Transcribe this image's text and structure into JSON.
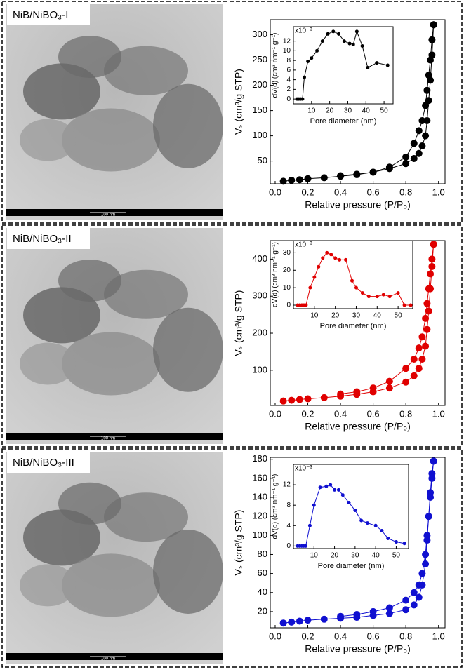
{
  "panels": [
    {
      "label": "NiB/NiBO₃-I",
      "scale_bar": "100 nm"
    },
    {
      "label": "NiB/NiBO₃-II",
      "scale_bar": "100 nm"
    },
    {
      "label": "NiB/NiBO₃-III",
      "scale_bar": "100 nm"
    }
  ],
  "chart_data": [
    {
      "type": "line",
      "x_label": "Relative pressure (P/P₀)",
      "y_label": "Vₛ (cm³/g STP)",
      "xlim": [
        -0.03,
        1.04
      ],
      "ylim": [
        5,
        330
      ],
      "xticks": [
        {
          "value": 0,
          "label": "0.0"
        },
        {
          "value": 0.2,
          "label": "0.2"
        },
        {
          "value": 0.4,
          "label": "0.4"
        },
        {
          "value": 0.6,
          "label": "0.6"
        },
        {
          "value": 0.8,
          "label": "0.8"
        },
        {
          "value": 1,
          "label": "1.0"
        }
      ],
      "yticks": [
        50,
        100,
        150,
        200,
        250,
        300
      ],
      "series": [
        {
          "color": "#000000",
          "x": [
            0.05,
            0.1,
            0.15,
            0.2,
            0.3,
            0.4,
            0.5,
            0.6,
            0.7,
            0.8,
            0.85,
            0.88,
            0.9,
            0.92,
            0.93,
            0.94,
            0.95,
            0.96,
            0.97
          ],
          "values": [
            10,
            12,
            13,
            15,
            17,
            20,
            23,
            28,
            35,
            45,
            55,
            65,
            80,
            100,
            130,
            170,
            210,
            260,
            320
          ]
        },
        {
          "color": "#000000",
          "x": [
            0.97,
            0.96,
            0.95,
            0.94,
            0.93,
            0.92,
            0.9,
            0.88,
            0.85,
            0.8,
            0.7,
            0.6,
            0.5,
            0.4
          ],
          "values": [
            320,
            290,
            250,
            220,
            190,
            160,
            130,
            110,
            85,
            58,
            38,
            28,
            24,
            21
          ]
        }
      ]
    },
    {
      "type": "line",
      "x_label": "Pore diameter (nm)",
      "y_label": "dV(d) (cm³ nm⁻¹ g⁻¹)",
      "multiplier": "x10⁻³",
      "xlim": [
        0,
        55
      ],
      "ylim": [
        -1,
        15
      ],
      "xticks": [
        10,
        20,
        30,
        40,
        50
      ],
      "yticks": [
        0,
        2,
        4,
        6,
        8,
        10,
        12
      ],
      "series": [
        {
          "color": "#000000",
          "x": [
            2,
            3,
            4,
            5,
            6,
            8,
            10,
            13,
            16,
            19,
            22,
            25,
            28,
            31,
            33,
            35,
            38,
            41,
            46,
            52
          ],
          "values": [
            0,
            0,
            0,
            0,
            4.5,
            7.8,
            8.5,
            10,
            12,
            13.5,
            14,
            13.5,
            12,
            11.5,
            11.3,
            14,
            11,
            6.5,
            7.5,
            7
          ]
        }
      ]
    },
    {
      "type": "line",
      "x_label": "Relative pressure (P/P₀)",
      "y_label": "Vₛ (cm³/g STP)",
      "xlim": [
        -0.03,
        1.04
      ],
      "ylim": [
        5,
        450
      ],
      "xticks": [
        {
          "value": 0,
          "label": "0.0"
        },
        {
          "value": 0.2,
          "label": "0.2"
        },
        {
          "value": 0.4,
          "label": "0.4"
        },
        {
          "value": 0.6,
          "label": "0.6"
        },
        {
          "value": 0.8,
          "label": "0.8"
        },
        {
          "value": 1,
          "label": "1.0"
        }
      ],
      "yticks": [
        100,
        200,
        300,
        400
      ],
      "series": [
        {
          "color": "#e00000",
          "x": [
            0.05,
            0.1,
            0.15,
            0.2,
            0.3,
            0.4,
            0.5,
            0.6,
            0.7,
            0.8,
            0.85,
            0.88,
            0.9,
            0.92,
            0.93,
            0.94,
            0.95,
            0.96,
            0.97
          ],
          "values": [
            17,
            19,
            21,
            23,
            26,
            30,
            35,
            42,
            52,
            68,
            85,
            105,
            130,
            165,
            210,
            260,
            320,
            380,
            440
          ]
        },
        {
          "color": "#e00000",
          "x": [
            0.97,
            0.96,
            0.95,
            0.94,
            0.93,
            0.92,
            0.9,
            0.88,
            0.85,
            0.8,
            0.7,
            0.6,
            0.5,
            0.4
          ],
          "values": [
            440,
            400,
            360,
            320,
            280,
            240,
            190,
            160,
            130,
            105,
            70,
            52,
            42,
            36
          ]
        }
      ]
    },
    {
      "type": "line",
      "x_label": "Pore diameter (nm)",
      "y_label": "dV(d) (cm³ nm⁻¹ g⁻¹)",
      "multiplier": "x10⁻³",
      "xlim": [
        0,
        57
      ],
      "ylim": [
        -2,
        37
      ],
      "xticks": [
        10,
        20,
        30,
        40,
        50
      ],
      "yticks": [
        0,
        10,
        20,
        30
      ],
      "series": [
        {
          "color": "#e00000",
          "x": [
            2,
            3,
            4,
            5,
            6,
            8,
            10,
            12,
            14,
            16,
            18,
            20,
            22,
            25,
            28,
            30,
            33,
            36,
            40,
            43,
            46,
            50,
            53,
            56
          ],
          "values": [
            0,
            0,
            0,
            0,
            0,
            10,
            16,
            22,
            27,
            30,
            29,
            27,
            26,
            26,
            14,
            10,
            7,
            5,
            5,
            6,
            5,
            7,
            0,
            0
          ]
        }
      ]
    },
    {
      "type": "line",
      "x_label": "Relative pressure (P/P₀)",
      "y_label": "Vₛ (cm³/g STP)",
      "xlim": [
        -0.03,
        1.04
      ],
      "ylim": [
        3,
        182
      ],
      "xticks": [
        {
          "value": 0,
          "label": "0.0"
        },
        {
          "value": 0.2,
          "label": "0.2"
        },
        {
          "value": 0.4,
          "label": "0.4"
        },
        {
          "value": 0.6,
          "label": "0.6"
        },
        {
          "value": 0.8,
          "label": "0.8"
        },
        {
          "value": 1,
          "label": "1.0"
        }
      ],
      "yticks": [
        20,
        40,
        60,
        80,
        100,
        120,
        140,
        160,
        180
      ],
      "series": [
        {
          "color": "#1010d0",
          "x": [
            0.05,
            0.1,
            0.15,
            0.2,
            0.3,
            0.4,
            0.5,
            0.6,
            0.7,
            0.8,
            0.85,
            0.88,
            0.9,
            0.92,
            0.93,
            0.94,
            0.95,
            0.96,
            0.97
          ],
          "values": [
            8,
            9,
            10,
            11,
            12,
            13,
            14,
            16,
            18,
            22,
            27,
            35,
            48,
            70,
            95,
            120,
            145,
            165,
            178
          ]
        },
        {
          "color": "#1010d0",
          "x": [
            0.97,
            0.96,
            0.95,
            0.94,
            0.93,
            0.92,
            0.9,
            0.88,
            0.85,
            0.8,
            0.7,
            0.6,
            0.5,
            0.4
          ],
          "values": [
            178,
            160,
            140,
            120,
            100,
            80,
            60,
            48,
            40,
            32,
            24,
            20,
            17,
            15
          ]
        }
      ]
    },
    {
      "type": "line",
      "x_label": "Pore diameter (nm)",
      "y_label": "dV(d) (cm³ nm⁻¹ g⁻¹)",
      "multiplier": "x10⁻³",
      "xlim": [
        0,
        56
      ],
      "ylim": [
        -0.5,
        16
      ],
      "xticks": [
        10,
        20,
        30,
        40,
        50
      ],
      "yticks": [
        0,
        4,
        8,
        12
      ],
      "series": [
        {
          "color": "#1010d0",
          "x": [
            2,
            3,
            4,
            5,
            6,
            8,
            10,
            13,
            16,
            18,
            20,
            22,
            24,
            27,
            30,
            33,
            36,
            40,
            43,
            46,
            50,
            54
          ],
          "values": [
            0,
            0,
            0,
            0,
            0,
            4,
            8,
            11.5,
            11.7,
            12,
            11,
            11,
            10,
            8.5,
            7,
            5,
            4.5,
            4,
            3,
            1.5,
            0.8,
            0.5
          ]
        }
      ]
    }
  ]
}
